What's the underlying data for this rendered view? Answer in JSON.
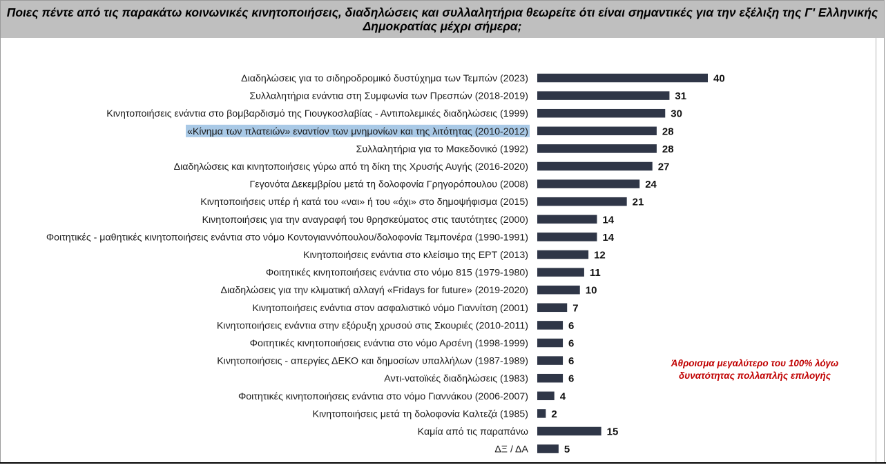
{
  "chart_data": {
    "type": "bar",
    "orientation": "horizontal",
    "title": "Ποιες πέντε από τις παρακάτω κοινωνικές κινητοποιήσεις, διαδηλώσεις και συλλαλητήρια θεωρείτε ότι είναι σημαντικές για την εξέλιξη της Γ' Ελληνικής Δημοκρατίας μέχρι σήμερα;",
    "note": "Άθροισμα μεγαλύτερο του 100% λόγω δυνατότητας πολλαπλής επιλογής",
    "categories": [
      "Διαδηλώσεις για το σιδηροδρομικό δυστύχημα των Τεμπών (2023)",
      "Συλλαλητήρια ενάντια στη Συμφωνία των Πρεσπών (2018-2019)",
      "Κινητοποιήσεις ενάντια στο βομβαρδισμό της Γιουγκοσλαβίας - Αντιπολεμικές διαδηλώσεις (1999)",
      "«Κίνημα των πλατειών» εναντίον των μνημονίων και της λιτότητας (2010-2012)",
      "Συλλαλητήρια για το Μακεδονικό (1992)",
      "Διαδηλώσεις και κινητοποιήσεις γύρω από τη δίκη της Χρυσής Αυγής (2016-2020)",
      "Γεγονότα Δεκεμβρίου μετά τη δολοφονία Γρηγορόπουλου (2008)",
      "Κινητοποιήσεις υπέρ ή κατά του «ναι» ή του «όχι» στο δημοψήφισμα (2015)",
      "Κινητοποιήσεις για την αναγραφή του θρησκεύματος στις ταυτότητες (2000)",
      "Φοιτητικές - μαθητικές κινητοποιήσεις ενάντια στο νόμο Κοντογιαννόπουλου/δολοφονία Τεμπονέρα (1990-1991)",
      "Κινητοποιήσεις ενάντια στο κλείσιμο της ΕΡΤ (2013)",
      "Φοιτητικές κινητοποιήσεις ενάντια στο νόμο 815 (1979-1980)",
      "Διαδηλώσεις για την κλιματική αλλαγή «Fridays for future» (2019-2020)",
      "Κινητοποιήσεις ενάντια στον ασφαλιστικό νόμο Γιαννίτση (2001)",
      "Κινητοποιήσεις ενάντια στην εξόρυξη χρυσού στις Σκουριές (2010-2011)",
      "Φοιτητικές κινητοποιήσεις ενάντια στο νόμο Αρσένη (1998-1999)",
      "Κινητοποιήσεις - απεργίες ΔΕΚΟ και δημοσίων υπαλλήλων (1987-1989)",
      "Αντι-νατοϊκές διαδηλώσεις (1983)",
      "Φοιτητικές κινητοποιήσεις ενάντια στο νόμο Γιαννάκου (2006-2007)",
      "Κινητοποιήσεις μετά τη δολοφονία Καλτεζά (1985)",
      "Καμία από τις παραπάνω",
      "ΔΞ / ΔΑ"
    ],
    "values": [
      40,
      31,
      30,
      28,
      28,
      27,
      24,
      21,
      14,
      14,
      12,
      11,
      10,
      7,
      6,
      6,
      6,
      6,
      4,
      2,
      15,
      5
    ],
    "highlighted_category_index": 3,
    "bar_color": "#2f3647",
    "highlight_color": "#a9c9e6",
    "note_color": "#c00000",
    "xlim": [
      0,
      40
    ],
    "grid": false,
    "legend": "none"
  }
}
